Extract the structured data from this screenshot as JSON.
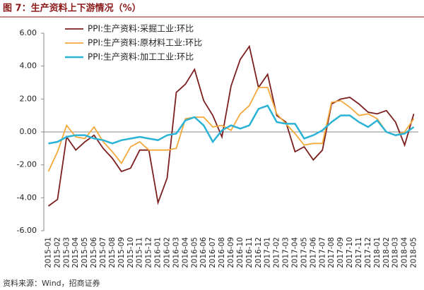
{
  "chart_data": {
    "type": "line",
    "title": "图 7：生产资料上下游情况（%）",
    "source": "资料来源：Wind，招商证券",
    "categories": [
      "2015-01",
      "2015-02",
      "2015-03",
      "2015-04",
      "2015-05",
      "2015-06",
      "2015-07",
      "2015-08",
      "2015-09",
      "2015-10",
      "2015-11",
      "2015-12",
      "2016-01",
      "2016-02",
      "2016-03",
      "2016-04",
      "2016-05",
      "2016-06",
      "2016-07",
      "2016-08",
      "2016-09",
      "2016-10",
      "2016-11",
      "2016-12",
      "2017-01",
      "2017-02",
      "2017-03",
      "2017-04",
      "2017-05",
      "2017-06",
      "2017-07",
      "2017-08",
      "2017-09",
      "2017-10",
      "2017-11",
      "2017-12",
      "2018-01",
      "2018-02",
      "2018-03",
      "2018-04",
      "2018-05"
    ],
    "series": [
      {
        "name": "PPI:生产资料:采掘工业:环比",
        "color": "#7b1f1f",
        "values": [
          -4.5,
          -4.1,
          -0.3,
          -1.1,
          -0.6,
          -0.2,
          -1.0,
          -1.6,
          -2.4,
          -2.2,
          -1.1,
          -1.1,
          -4.3,
          -2.8,
          2.4,
          2.9,
          3.8,
          1.9,
          1.0,
          -0.3,
          2.8,
          4.4,
          5.2,
          2.7,
          3.5,
          1.0,
          0.6,
          -1.2,
          -0.9,
          -1.7,
          -1.1,
          1.7,
          2.0,
          2.1,
          1.7,
          1.2,
          1.1,
          1.3,
          0.6,
          -0.8,
          1.1
        ]
      },
      {
        "name": "PPI:生产资料:原材料工业:环比",
        "color": "#f3a93b",
        "values": [
          -2.4,
          -1.2,
          0.4,
          -0.3,
          -0.4,
          0.3,
          -0.6,
          -1.2,
          -1.9,
          -0.9,
          -0.6,
          -1.1,
          -1.1,
          -1.1,
          -1.0,
          0.8,
          0.9,
          0.9,
          0.3,
          0.4,
          0.1,
          1.1,
          1.6,
          2.7,
          2.7,
          1.1,
          0.5,
          -0.1,
          -0.8,
          -0.7,
          -0.7,
          1.8,
          1.9,
          1.5,
          1.0,
          1.1,
          0.8,
          0.0,
          -0.2,
          0.0,
          0.8
        ]
      },
      {
        "name": "PPI:生产资料:加工工业:环比",
        "color": "#2bb3d6",
        "values": [
          -0.7,
          -0.6,
          -0.3,
          -0.2,
          -0.2,
          -0.4,
          -0.5,
          -0.7,
          -0.5,
          -0.4,
          -0.3,
          -0.4,
          -0.5,
          -0.2,
          -0.1,
          0.7,
          0.9,
          0.4,
          -0.6,
          0.1,
          0.4,
          0.2,
          0.4,
          1.4,
          1.6,
          0.6,
          0.5,
          0.5,
          -0.4,
          -0.2,
          0.1,
          0.6,
          1.0,
          1.0,
          0.6,
          0.3,
          0.7,
          0.0,
          -0.2,
          -0.1,
          0.3
        ]
      }
    ],
    "ylim": [
      -6,
      6
    ],
    "yticks": [
      {
        "value": -6,
        "label": "-6.00"
      },
      {
        "value": -4,
        "label": "-4.00"
      },
      {
        "value": -2,
        "label": "-2.00"
      },
      {
        "value": 0,
        "label": "0.00"
      },
      {
        "value": 2,
        "label": "2.00"
      },
      {
        "value": 4,
        "label": "4.00"
      },
      {
        "value": 6,
        "label": "6.00"
      }
    ],
    "grid": false,
    "legend": "upper-left"
  }
}
